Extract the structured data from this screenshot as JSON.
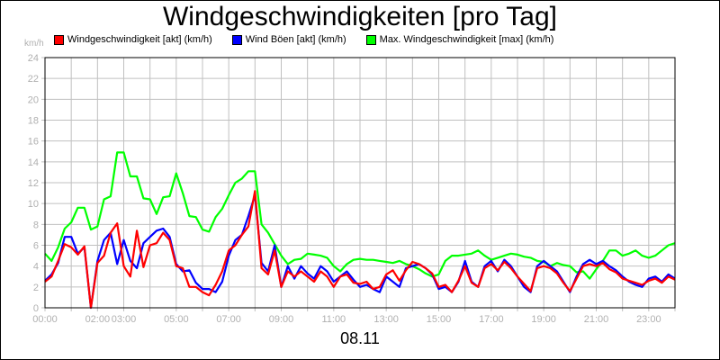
{
  "title": "Windgeschwindigkeiten [pro Tag]",
  "date_label": "08.11",
  "y_unit": "km/h",
  "legend": [
    {
      "label": "Windgeschwindigkeit [akt] (km/h)",
      "color": "#ff0000"
    },
    {
      "label": "Wind Böen [akt] (km/h)",
      "color": "#0000ff"
    },
    {
      "label": "Max. Windgeschwindigkeit [max] (km/h)",
      "color": "#00ff00"
    }
  ],
  "chart_data": {
    "type": "line",
    "title": "Windgeschwindigkeiten [pro Tag]",
    "xlabel": "08.11",
    "ylabel": "km/h",
    "ylim": [
      0,
      24
    ],
    "xlim_hours": [
      0,
      24
    ],
    "grid": true,
    "legend_position": "top",
    "y_ticks": [
      0,
      2,
      4,
      6,
      8,
      10,
      12,
      14,
      16,
      18,
      20,
      22,
      24
    ],
    "x_tick_labels": [
      "00:00",
      "02:00",
      "03:00",
      "05:00",
      "07:00",
      "09:00",
      "11:00",
      "13:00",
      "15:00",
      "17:00",
      "19:00",
      "21:00",
      "23:00"
    ],
    "x_tick_label_hours": [
      0,
      2,
      3,
      5,
      7,
      9,
      11,
      13,
      15,
      17,
      19,
      21,
      23
    ],
    "x_step_hours": 0.25,
    "series": [
      {
        "name": "Max. Windgeschwindigkeit [max] (km/h)",
        "color": "#00ff00",
        "values": [
          5.2,
          4.5,
          5.8,
          7.6,
          8.2,
          9.6,
          9.6,
          7.5,
          7.8,
          10.4,
          10.7,
          14.9,
          14.9,
          12.6,
          12.6,
          10.5,
          10.4,
          9.0,
          10.6,
          10.7,
          12.9,
          11.0,
          8.8,
          8.7,
          7.5,
          7.3,
          8.7,
          9.5,
          10.8,
          12.0,
          12.4,
          13.1,
          13.1,
          8.0,
          7.2,
          6.1,
          5.0,
          4.2,
          4.6,
          4.7,
          5.2,
          5.1,
          5.0,
          4.8,
          4.0,
          3.5,
          4.2,
          4.6,
          4.7,
          4.6,
          4.6,
          4.5,
          4.4,
          4.3,
          4.5,
          4.2,
          4.0,
          3.7,
          3.3,
          3.0,
          3.2,
          4.5,
          5.0,
          5.0,
          5.1,
          5.2,
          5.5,
          5.0,
          4.6,
          4.8,
          5.0,
          5.2,
          5.1,
          4.9,
          4.8,
          4.5,
          4.4,
          4.0,
          4.3,
          4.1,
          4.0,
          3.4,
          3.5,
          2.8,
          3.7,
          4.5,
          5.5,
          5.5,
          5.0,
          5.2,
          5.5,
          5.0,
          4.8,
          5.0,
          5.5,
          6.0,
          6.2
        ]
      },
      {
        "name": "Wind Böen [akt] (km/h)",
        "color": "#0000ff",
        "values": [
          2.6,
          3.2,
          4.3,
          6.8,
          6.8,
          5.2,
          5.8,
          0.0,
          4.5,
          6.5,
          7.2,
          4.2,
          6.5,
          4.5,
          3.8,
          6.2,
          6.8,
          7.4,
          7.6,
          6.8,
          4.2,
          3.5,
          3.6,
          2.4,
          1.8,
          1.8,
          1.5,
          2.5,
          5.0,
          6.5,
          7.0,
          8.8,
          10.8,
          4.3,
          3.5,
          6.0,
          2.0,
          4.0,
          2.8,
          4.0,
          3.3,
          2.8,
          4.0,
          3.5,
          2.5,
          3.0,
          3.5,
          2.7,
          2.0,
          2.2,
          1.8,
          1.5,
          3.0,
          2.5,
          2.0,
          3.8,
          4.0,
          4.2,
          3.8,
          3.2,
          1.8,
          2.0,
          1.5,
          2.5,
          4.5,
          2.5,
          2.0,
          4.0,
          4.5,
          3.5,
          4.6,
          4.0,
          3.0,
          2.0,
          1.5,
          4.0,
          4.5,
          4.0,
          3.5,
          2.5,
          1.5,
          3.0,
          4.2,
          4.6,
          4.2,
          4.5,
          4.0,
          3.6,
          3.0,
          2.5,
          2.2,
          2.0,
          2.8,
          3.0,
          2.5,
          3.2,
          2.8
        ]
      },
      {
        "name": "Windgeschwindigkeit [akt] (km/h)",
        "color": "#ff0000",
        "values": [
          2.5,
          3.0,
          4.5,
          6.1,
          5.8,
          5.1,
          5.9,
          0.0,
          4.3,
          5.0,
          7.2,
          8.1,
          4.0,
          3.0,
          7.4,
          3.9,
          6.0,
          6.2,
          7.2,
          6.5,
          4.0,
          3.8,
          2.0,
          2.0,
          1.5,
          1.2,
          2.2,
          3.5,
          5.5,
          6.0,
          7.0,
          7.8,
          11.2,
          3.8,
          3.2,
          5.5,
          2.0,
          3.5,
          3.0,
          3.5,
          3.0,
          2.5,
          3.5,
          3.0,
          2.0,
          3.0,
          3.2,
          2.4,
          2.3,
          2.5,
          1.8,
          2.0,
          3.2,
          3.6,
          2.6,
          3.6,
          4.4,
          4.2,
          3.8,
          3.3,
          2.0,
          2.2,
          1.5,
          2.6,
          4.0,
          2.4,
          2.0,
          3.8,
          4.2,
          3.6,
          4.4,
          3.8,
          3.0,
          2.3,
          1.6,
          3.8,
          4.0,
          3.8,
          3.3,
          2.4,
          1.6,
          2.8,
          4.0,
          4.2,
          4.0,
          4.3,
          3.7,
          3.4,
          2.8,
          2.6,
          2.4,
          2.2,
          2.6,
          2.8,
          2.4,
          3.0,
          2.7
        ]
      }
    ]
  }
}
